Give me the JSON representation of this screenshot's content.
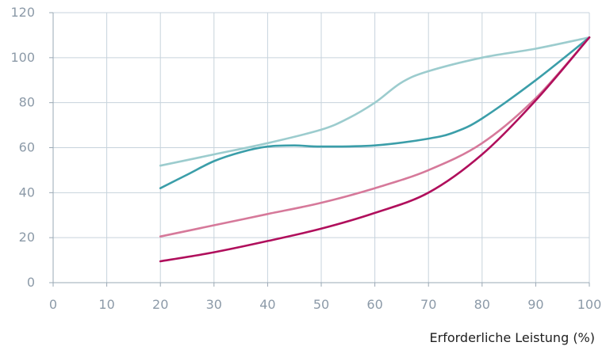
{
  "chart_data": {
    "type": "line",
    "xlabel": "Erforderliche Leistung (%)",
    "ylabel": "",
    "xlim": [
      0,
      100
    ],
    "ylim": [
      0,
      120
    ],
    "x_ticks": [
      "0",
      "10",
      "20",
      "30",
      "40",
      "50",
      "60",
      "70",
      "80",
      "90",
      "100"
    ],
    "y_ticks": [
      "0",
      "20",
      "40",
      "60",
      "80",
      "100",
      "120"
    ],
    "grid": true,
    "legend": "none",
    "series": [
      {
        "color": "#9cccce",
        "x": [
          20,
          30,
          40,
          50,
          55,
          60,
          65,
          70,
          80,
          90,
          100
        ],
        "y": [
          52,
          57,
          62,
          68,
          73,
          80,
          89,
          94,
          100,
          104,
          109
        ]
      },
      {
        "color": "#3b9ea9",
        "x": [
          20,
          25,
          30,
          35,
          40,
          45,
          50,
          60,
          70,
          75,
          80,
          90,
          100
        ],
        "y": [
          42,
          48,
          54,
          58,
          60.5,
          61,
          60.5,
          61,
          64,
          67,
          73,
          90,
          109
        ]
      },
      {
        "color": "#d6799a",
        "x": [
          20,
          30,
          40,
          50,
          60,
          70,
          80,
          90,
          100
        ],
        "y": [
          20.5,
          25.5,
          30.5,
          35.5,
          42,
          50,
          62,
          82,
          109
        ]
      },
      {
        "color": "#b00f5c",
        "x": [
          20,
          30,
          40,
          50,
          60,
          70,
          80,
          90,
          100
        ],
        "y": [
          9.5,
          13.5,
          18.5,
          24,
          31,
          40,
          57,
          81,
          109
        ]
      }
    ]
  }
}
